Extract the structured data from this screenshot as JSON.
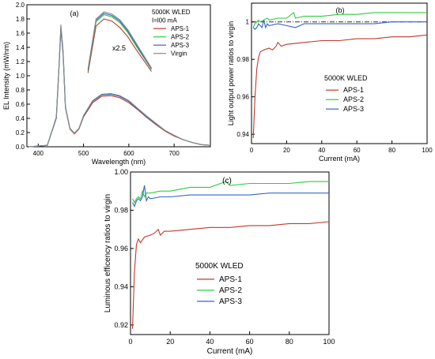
{
  "chart_data": [
    {
      "id": "a",
      "type": "line",
      "panel_label": "(a)",
      "xlabel": "Wavelength (nm)",
      "ylabel": "EL Intensity (mW/nm)",
      "xlim": [
        375,
        780
      ],
      "ylim": [
        0,
        2.0
      ],
      "xticks": [
        400,
        500,
        600,
        700
      ],
      "yticks": [
        0.0,
        0.2,
        0.4,
        0.6,
        0.8,
        1.0,
        1.2,
        1.4,
        1.6,
        1.8,
        2.0
      ],
      "ytick_labels": [
        "0.0",
        "0.2",
        "0.4",
        "0.6",
        "0.8",
        "1.0",
        "1.2",
        "1.4",
        "1.6",
        "1.8",
        "2.0"
      ],
      "legend_title": [
        "5000K WLED",
        "I=l00 mA"
      ],
      "inset_label": "x2.5",
      "inset_wavelength_range": [
        510,
        650
      ],
      "series": [
        {
          "name": "APS-1",
          "color": "#c0392b",
          "x": [
            380,
            420,
            440,
            445,
            450,
            455,
            460,
            470,
            480,
            490,
            500,
            520,
            540,
            560,
            580,
            600,
            620,
            640,
            660,
            680,
            700,
            720,
            740,
            760,
            780
          ],
          "y": [
            0.0,
            0.02,
            0.4,
            1.0,
            1.65,
            1.3,
            0.55,
            0.25,
            0.18,
            0.25,
            0.42,
            0.62,
            0.71,
            0.72,
            0.69,
            0.62,
            0.52,
            0.41,
            0.31,
            0.22,
            0.15,
            0.1,
            0.06,
            0.03,
            0.02
          ],
          "inset_y": [
            1.04,
            1.7,
            1.8,
            1.77,
            1.68,
            1.55,
            1.38,
            1.22,
            1.06
          ]
        },
        {
          "name": "APS-2",
          "color": "#2ecc40",
          "x": [
            380,
            420,
            440,
            445,
            450,
            455,
            460,
            470,
            480,
            490,
            500,
            520,
            540,
            560,
            580,
            600,
            620,
            640,
            660,
            680,
            700,
            720,
            740,
            760,
            780
          ],
          "y": [
            0.0,
            0.02,
            0.41,
            1.02,
            1.69,
            1.33,
            0.56,
            0.26,
            0.19,
            0.26,
            0.43,
            0.64,
            0.73,
            0.74,
            0.71,
            0.64,
            0.53,
            0.42,
            0.32,
            0.23,
            0.16,
            0.1,
            0.06,
            0.03,
            0.02
          ],
          "inset_y": [
            1.07,
            1.76,
            1.86,
            1.83,
            1.75,
            1.61,
            1.43,
            1.26,
            1.09
          ]
        },
        {
          "name": "APS-3",
          "color": "#3465c8",
          "x": [
            380,
            420,
            440,
            445,
            450,
            455,
            460,
            470,
            480,
            490,
            500,
            520,
            540,
            560,
            580,
            600,
            620,
            640,
            660,
            680,
            700,
            720,
            740,
            760,
            780
          ],
          "y": [
            0.0,
            0.02,
            0.41,
            1.02,
            1.68,
            1.32,
            0.56,
            0.26,
            0.19,
            0.26,
            0.43,
            0.64,
            0.73,
            0.74,
            0.71,
            0.64,
            0.53,
            0.42,
            0.32,
            0.23,
            0.16,
            0.1,
            0.06,
            0.03,
            0.02
          ],
          "inset_y": [
            1.08,
            1.78,
            1.88,
            1.85,
            1.77,
            1.63,
            1.45,
            1.27,
            1.1
          ]
        },
        {
          "name": "Virgin",
          "color": "#8a8a8a",
          "x": [
            380,
            420,
            440,
            445,
            450,
            455,
            460,
            470,
            480,
            490,
            500,
            520,
            540,
            560,
            580,
            600,
            620,
            640,
            660,
            680,
            700,
            720,
            740,
            760,
            780
          ],
          "y": [
            0.0,
            0.02,
            0.42,
            1.04,
            1.72,
            1.35,
            0.57,
            0.26,
            0.19,
            0.26,
            0.44,
            0.65,
            0.74,
            0.75,
            0.72,
            0.65,
            0.54,
            0.43,
            0.33,
            0.23,
            0.16,
            0.1,
            0.06,
            0.03,
            0.02
          ],
          "inset_y": [
            1.1,
            1.8,
            1.9,
            1.87,
            1.79,
            1.65,
            1.47,
            1.29,
            1.11
          ]
        }
      ]
    },
    {
      "id": "b",
      "type": "line",
      "panel_label": "(b)",
      "xlabel": "Current (mA)",
      "ylabel": "Light output power ratios to virgin",
      "xlim": [
        0,
        100
      ],
      "ylim": [
        0.935,
        1.01
      ],
      "xticks": [
        0,
        20,
        40,
        60,
        80,
        100
      ],
      "yticks": [
        0.94,
        0.96,
        0.98,
        1.0
      ],
      "ytick_labels": [
        "0.94",
        "0.96",
        "0.98",
        "1"
      ],
      "reference_line": 1.0,
      "legend_title": "5000K WLED",
      "series": [
        {
          "name": "APS-1",
          "color": "#c0392b",
          "x": [
            1,
            2,
            3,
            4,
            5,
            7,
            10,
            12,
            14,
            15,
            17,
            20,
            30,
            40,
            50,
            60,
            70,
            80,
            90,
            100
          ],
          "y": [
            0.938,
            0.96,
            0.975,
            0.981,
            0.984,
            0.985,
            0.986,
            0.985,
            0.987,
            0.989,
            0.987,
            0.988,
            0.989,
            0.99,
            0.99,
            0.991,
            0.991,
            0.992,
            0.992,
            0.993
          ]
        },
        {
          "name": "APS-2",
          "color": "#2ecc40",
          "x": [
            1,
            2,
            3,
            4,
            5,
            7,
            9,
            10,
            15,
            20,
            24,
            25,
            30,
            40,
            50,
            60,
            70,
            80,
            90,
            100
          ],
          "y": [
            0.997,
            0.999,
            1.0,
            1.001,
            1.0,
            1.001,
            1.002,
            1.001,
            1.002,
            1.002,
            1.005,
            1.002,
            1.003,
            1.003,
            1.004,
            1.004,
            1.005,
            1.005,
            1.005,
            1.005
          ]
        },
        {
          "name": "APS-3",
          "color": "#3465c8",
          "x": [
            1,
            2,
            3,
            4,
            5,
            6,
            7,
            8,
            9,
            10,
            15,
            20,
            25,
            30,
            40,
            50,
            60,
            70,
            80,
            90,
            100
          ],
          "y": [
            0.997,
            0.996,
            0.997,
            0.999,
            0.998,
            0.997,
            1.001,
            0.997,
            0.999,
            0.998,
            0.999,
            0.998,
            0.997,
            0.999,
            0.999,
            0.999,
            0.999,
            0.999,
            1.0,
            1.0,
            1.0
          ]
        }
      ]
    },
    {
      "id": "c",
      "type": "line",
      "panel_label": "(c)",
      "xlabel": "Current (mA)",
      "ylabel": "Luminous efficency ratios to virgin",
      "xlim": [
        0,
        100
      ],
      "ylim": [
        0.915,
        1.0
      ],
      "xticks": [
        0,
        20,
        40,
        60,
        80,
        100
      ],
      "yticks": [
        0.92,
        0.94,
        0.96,
        0.98,
        1.0
      ],
      "ytick_labels": [
        "0.92",
        "0.94",
        "0.96",
        "0.98",
        "1.00"
      ],
      "legend_title": "5000K WLED",
      "series": [
        {
          "name": "APS-1",
          "color": "#c0392b",
          "x": [
            1,
            2,
            3,
            4,
            5,
            7,
            10,
            12,
            14,
            15,
            17,
            20,
            30,
            40,
            50,
            60,
            70,
            80,
            90,
            100
          ],
          "y": [
            0.918,
            0.948,
            0.962,
            0.965,
            0.963,
            0.966,
            0.967,
            0.968,
            0.97,
            0.967,
            0.969,
            0.969,
            0.97,
            0.971,
            0.971,
            0.972,
            0.972,
            0.973,
            0.973,
            0.974
          ]
        },
        {
          "name": "APS-2",
          "color": "#2ecc40",
          "x": [
            1,
            2,
            3,
            4,
            5,
            6,
            7,
            8,
            10,
            15,
            20,
            25,
            30,
            40,
            48,
            50,
            60,
            70,
            80,
            90,
            100
          ],
          "y": [
            0.986,
            0.984,
            0.986,
            0.987,
            0.986,
            0.99,
            0.987,
            0.989,
            0.989,
            0.99,
            0.99,
            0.991,
            0.992,
            0.992,
            0.995,
            0.993,
            0.994,
            0.994,
            0.994,
            0.995,
            0.995
          ]
        },
        {
          "name": "APS-3",
          "color": "#3465c8",
          "x": [
            1,
            2,
            3,
            4,
            5,
            6,
            7,
            8,
            9,
            10,
            15,
            20,
            30,
            40,
            50,
            60,
            70,
            80,
            90,
            100
          ],
          "y": [
            0.984,
            0.982,
            0.985,
            0.986,
            0.985,
            0.987,
            0.993,
            0.985,
            0.987,
            0.986,
            0.987,
            0.987,
            0.988,
            0.988,
            0.988,
            0.988,
            0.989,
            0.989,
            0.989,
            0.989
          ]
        }
      ]
    }
  ]
}
